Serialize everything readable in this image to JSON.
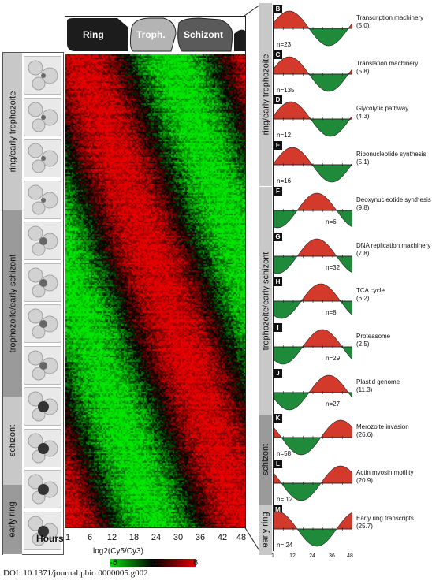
{
  "stages_top": [
    {
      "label": "Ring",
      "color": "#1c1c1c",
      "text_color": "#ffffff"
    },
    {
      "label": "Troph.",
      "color": "#b4b4b4",
      "text_color": "#ffffff"
    },
    {
      "label": "Schizont",
      "color": "#5a5a5a",
      "text_color": "#ffffff"
    }
  ],
  "left_stages": [
    {
      "label": "ring/early trophozoite",
      "color": "#c8c8c8"
    },
    {
      "label": "trophozoite/early schizont",
      "color": "#9a9a9a"
    },
    {
      "label": "schizont",
      "color": "#c8c8c8"
    },
    {
      "label": "early ring",
      "color": "#9a9a9a"
    }
  ],
  "axis": {
    "title": "Hours",
    "ticks": [
      "1",
      "6",
      "12",
      "18",
      "24",
      "30",
      "36",
      "42",
      "48"
    ]
  },
  "color_scale": {
    "label": "log2(Cy5/Cy3)",
    "ticks": [
      "-6",
      "0",
      "6"
    ],
    "low_color": "#00e000",
    "high_color": "#e00000"
  },
  "doi": "DOI: 10.1371/journal.pbio.0000005.g002",
  "right_stages": [
    {
      "label": "ring/early trophozoite",
      "color": "#c8c8c8"
    },
    {
      "label": "trophozoite/early schizont",
      "color": "#c8c8c8"
    },
    {
      "label": "schizont",
      "color": "#9a9a9a"
    },
    {
      "label": "early ring",
      "color": "#c8c8c8"
    }
  ],
  "profile_axis_ticks": [
    "1",
    "12",
    "24",
    "36",
    "48"
  ],
  "profiles": [
    {
      "letter": "B",
      "name": "Transcription machinery",
      "value": "(5.0)",
      "n": "n=23"
    },
    {
      "letter": "C",
      "name": "Translation machinery",
      "value": "(5.8)",
      "n": "n=135"
    },
    {
      "letter": "D",
      "name": "Glycolytic pathway",
      "value": "(4.3)",
      "n": "n=12"
    },
    {
      "letter": "E",
      "name": "Ribonucleotide synthesis",
      "value": "(5.1)",
      "n": "n=16"
    },
    {
      "letter": "F",
      "name": "Deoxynucleotide synthesis",
      "value": "(9.8)",
      "n": "n=6"
    },
    {
      "letter": "G",
      "name": "DNA replication machinery",
      "value": "(7.8)",
      "n": "n=32"
    },
    {
      "letter": "H",
      "name": "TCA cycle",
      "value": "(6.2)",
      "n": "n=8"
    },
    {
      "letter": "I",
      "name": "Proteasome",
      "value": "(2.5)",
      "n": "n=29"
    },
    {
      "letter": "J",
      "name": "Plastid genome",
      "value": "(11.3)",
      "n": "n=27"
    },
    {
      "letter": "K",
      "name": "Merozoite invasion",
      "value": "(26.6)",
      "n": "n=58"
    },
    {
      "letter": "L",
      "name": "Actin myosin motility",
      "value": "(20.9)",
      "n": "n= 12"
    },
    {
      "letter": "M",
      "name": "Early ring transcripts",
      "value": "(25.7)",
      "n": "n= 24"
    }
  ]
}
